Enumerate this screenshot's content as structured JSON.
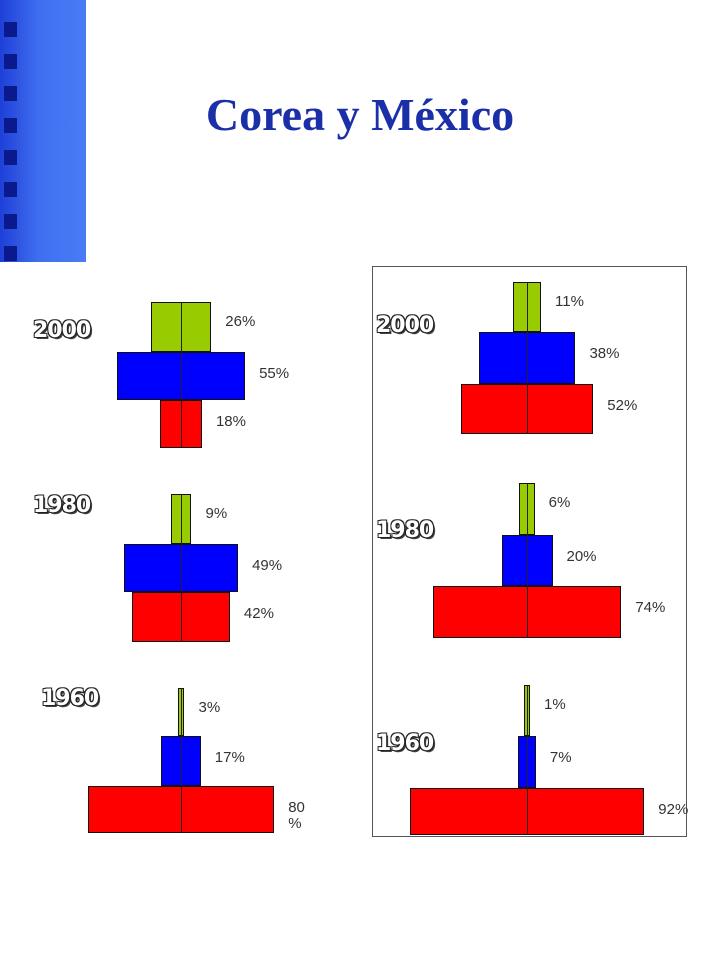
{
  "title": "Corea y México",
  "colors": {
    "young": "#99cc00",
    "middle": "#0000ff",
    "old": "#ff0000",
    "title": "#1a2fa8"
  },
  "chart_data": [
    {
      "type": "bar",
      "subtype": "population-pyramid",
      "groups": [
        {
          "year": "2000",
          "values": [
            26,
            55,
            18
          ],
          "labels": [
            "26%",
            "55%",
            "18%"
          ]
        },
        {
          "year": "1980",
          "values": [
            9,
            49,
            42
          ],
          "labels": [
            "9%",
            "49%",
            "42%"
          ]
        },
        {
          "year": "1960",
          "values": [
            3,
            17,
            80
          ],
          "labels": [
            "3%",
            "17%",
            "80\n%"
          ]
        }
      ]
    },
    {
      "type": "bar",
      "subtype": "population-pyramid",
      "groups": [
        {
          "year": "2000",
          "values": [
            11,
            38,
            52
          ],
          "labels": [
            "11%",
            "38%",
            "52%"
          ]
        },
        {
          "year": "1980",
          "values": [
            6,
            20,
            74
          ],
          "labels": [
            "6%",
            "20%",
            "74%"
          ]
        },
        {
          "year": "1960",
          "values": [
            1,
            7,
            92
          ],
          "labels": [
            "1%",
            "7%",
            "92%"
          ]
        }
      ]
    }
  ]
}
